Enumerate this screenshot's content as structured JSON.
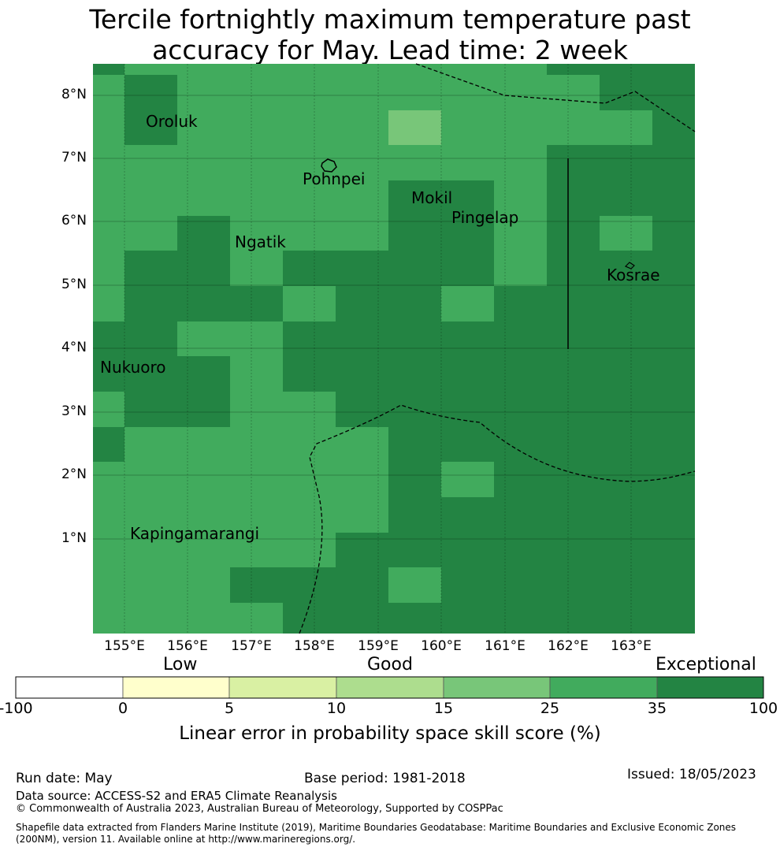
{
  "title_line1": "Tercile fortnightly maximum temperature past",
  "title_line2": "accuracy for May. Lead time: 2 week",
  "map": {
    "lon_labels": [
      "155°E",
      "156°E",
      "157°E",
      "158°E",
      "159°E",
      "160°E",
      "161°E",
      "162°E",
      "163°E"
    ],
    "lat_labels": [
      "8°N",
      "7°N",
      "6°N",
      "5°N",
      "4°N",
      "3°N",
      "2°N",
      "1°N"
    ],
    "islands": [
      "Oroluk",
      "Pohnpei",
      "Mokil",
      "Pingelap",
      "Ngatik",
      "Kosrae",
      "Nukuoro",
      "Kapingamarangi"
    ],
    "grid_colors": {
      "c25_35": "#41ab5d",
      "c35_100": "#238443",
      "c15_25": "#78c679"
    }
  },
  "colorbar": {
    "categories": [
      "Low",
      "Good",
      "Exceptional"
    ],
    "ticks": [
      "-100",
      "0",
      "5",
      "10",
      "15",
      "25",
      "35",
      "100"
    ],
    "colors": [
      "#ffffff",
      "#ffffcc",
      "#d9f0a3",
      "#addd8e",
      "#78c679",
      "#41ab5d",
      "#238443"
    ],
    "title": "Linear error in probability space skill score (%)"
  },
  "footer": {
    "run_date": "Run date: May",
    "base_period": "Base period: 1981-2018",
    "issued": "Issued: 18/05/2023",
    "data_source": "Data source: ACCESS-S2 and ERA5 Climate Reanalysis",
    "copyright": "© Commonwealth of Australia 2023, Australian Bureau of Meteorology, Supported by COSPPac",
    "shapefile": "Shapefile data extracted from Flanders Marine Institute (2019), Maritime Boundaries Geodatabase: Maritime Boundaries and Exclusive Economic Zones (200NM), version 11. Available online at http://www.marineregions.org/."
  }
}
